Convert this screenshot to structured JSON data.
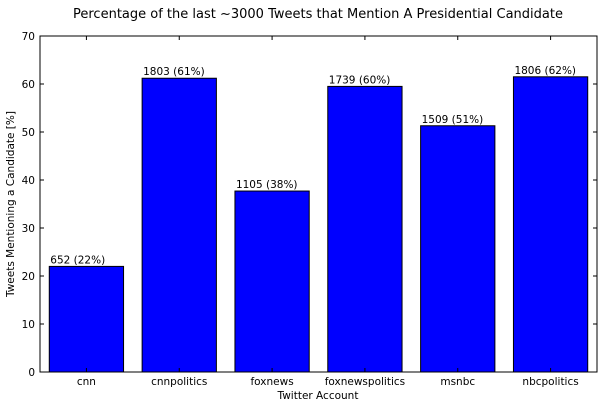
{
  "chart_data": {
    "type": "bar",
    "title": "Percentage of the last ~3000 Tweets that Mention A Presidential Candidate",
    "xlabel": "Twitter Account",
    "ylabel": "Tweets Mentioning a Candidate [%]",
    "categories": [
      "cnn",
      "cnnpolitics",
      "foxnews",
      "foxnewspolitics",
      "msnbc",
      "nbcpolitics"
    ],
    "values": [
      22.0,
      61.2,
      37.7,
      59.5,
      51.3,
      61.5
    ],
    "data_labels": [
      "652 (22%)",
      "1803 (61%)",
      "1105 (38%)",
      "1739 (60%)",
      "1509 (51%)",
      "1806 (62%)"
    ],
    "ylim": [
      0,
      70
    ],
    "yticks": [
      0,
      10,
      20,
      30,
      40,
      50,
      60,
      70
    ],
    "grid": false,
    "legend": "none",
    "bar_color": "#0000ff",
    "edge_color": "#000000"
  }
}
